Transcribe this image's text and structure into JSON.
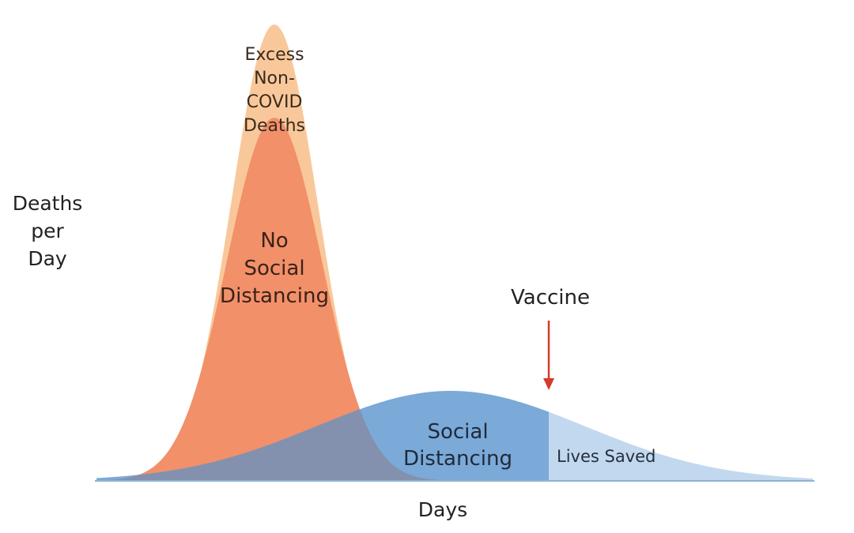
{
  "labels": {
    "y_axis": [
      "Deaths",
      "per",
      "Day"
    ],
    "x_axis": "Days",
    "excess": [
      "Excess",
      "Non-",
      "COVID",
      "Deaths"
    ],
    "no_social_distancing": [
      "No",
      "Social",
      "Distancing"
    ],
    "social_distancing": [
      "Social",
      "Distancing"
    ],
    "lives_saved": "Lives Saved",
    "vaccine": "Vaccine"
  },
  "colors": {
    "excess_area": "#f9c89a",
    "no_sd_area": "#f2906a",
    "sd_area": "#7ba9d8",
    "overlap_area": "#8391ae",
    "lives_saved_area": "#c2d8ee",
    "vaccine_arrow": "#d23b2e",
    "axis": "#8fb2d6"
  }
}
